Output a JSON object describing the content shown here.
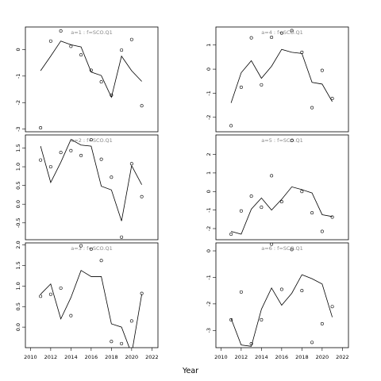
{
  "chart_data": {
    "type": "line",
    "xlabel": "Year",
    "x_axis_ticks": [
      "2010",
      "2012",
      "2014",
      "2016",
      "2018",
      "2020",
      "2022"
    ],
    "panels": [
      {
        "title": "a=1 : f=SCO.Q1",
        "ylim": [
          -3.1,
          0.85
        ],
        "yticks": [
          "0",
          "-1",
          "-2",
          "-3"
        ],
        "show_xticks": false,
        "x": [
          2011,
          2012,
          2013,
          2014,
          2015,
          2016,
          2017,
          2018,
          2019,
          2020,
          2021
        ],
        "fitted": [
          -0.8,
          -0.25,
          0.32,
          0.18,
          0.1,
          -0.85,
          -0.98,
          -1.8,
          -0.25,
          -0.8,
          -1.2
        ],
        "observed": [
          -2.95,
          0.32,
          0.7,
          0.12,
          -0.2,
          -0.78,
          -1.22,
          -1.72,
          -0.02,
          0.38,
          -2.12
        ]
      },
      {
        "title": "a=4 : f=SCO.Q1",
        "ylim": [
          -2.6,
          1.75
        ],
        "yticks": [
          "1",
          "0",
          "-1",
          "-2"
        ],
        "show_xticks": false,
        "x": [
          2011,
          2012,
          2013,
          2014,
          2015,
          2016,
          2017,
          2018,
          2019,
          2020,
          2021
        ],
        "fitted": [
          -1.4,
          -0.15,
          0.35,
          -0.38,
          0.12,
          0.82,
          0.7,
          0.65,
          -0.55,
          -0.62,
          -1.35
        ],
        "observed": [
          -2.35,
          -0.75,
          1.3,
          -0.65,
          1.32,
          1.5,
          1.6,
          0.7,
          -1.6,
          -0.05,
          -1.22
        ]
      },
      {
        "title": "a=2 : f=SCO.Q1",
        "ylim": [
          -0.95,
          1.85
        ],
        "yticks": [
          "1.5",
          "1.0",
          "0.5",
          "0.0",
          "-0.5"
        ],
        "show_xticks": false,
        "x": [
          2011,
          2012,
          2013,
          2014,
          2015,
          2016,
          2017,
          2018,
          2019,
          2020,
          2021
        ],
        "fitted": [
          1.55,
          0.58,
          1.12,
          1.73,
          1.58,
          1.55,
          0.48,
          0.38,
          -0.45,
          1.03,
          0.52
        ],
        "observed": [
          1.18,
          1.0,
          1.38,
          1.43,
          1.3,
          1.72,
          1.2,
          0.72,
          -0.88,
          1.08,
          0.2
        ]
      },
      {
        "title": "a=5 : f=SCO.Q1",
        "ylim": [
          -2.6,
          3.05
        ],
        "yticks": [
          "2",
          "1",
          "0",
          "-1",
          "-2"
        ],
        "show_xticks": false,
        "x": [
          2011,
          2012,
          2013,
          2014,
          2015,
          2016,
          2017,
          2018,
          2019,
          2020,
          2021
        ],
        "fitted": [
          -2.15,
          -2.3,
          -0.95,
          -0.35,
          -1.0,
          -0.42,
          0.25,
          0.1,
          -0.08,
          -1.25,
          -1.35
        ],
        "observed": [
          -2.3,
          -1.05,
          -0.25,
          -0.85,
          0.85,
          -0.55,
          2.75,
          0.0,
          -1.15,
          -2.15,
          -1.38
        ]
      },
      {
        "title": "a=3 : f=SCO.Q1",
        "ylim": [
          -0.5,
          2.05
        ],
        "yticks": [
          "2.0",
          "1.5",
          "1.0",
          "0.5",
          "0.0"
        ],
        "show_xticks": true,
        "x": [
          2011,
          2012,
          2013,
          2014,
          2015,
          2016,
          2017,
          2018,
          2019,
          2020,
          2021
        ],
        "fitted": [
          0.8,
          1.05,
          0.2,
          0.72,
          1.38,
          1.23,
          1.23,
          0.08,
          0.0,
          -0.65,
          0.8
        ],
        "observed": [
          0.75,
          0.8,
          0.95,
          0.28,
          1.98,
          1.9,
          1.62,
          -0.35,
          -0.4,
          0.15,
          0.82
        ]
      },
      {
        "title": "a=6 : f=SCO.Q1",
        "ylim": [
          -3.65,
          0.3
        ],
        "yticks": [
          "0",
          "-1",
          "-2",
          "-3"
        ],
        "show_xticks": true,
        "x": [
          2011,
          2012,
          2013,
          2014,
          2015,
          2016,
          2017,
          2018,
          2019,
          2020,
          2021
        ],
        "fitted": [
          -2.55,
          -3.55,
          -3.6,
          -2.2,
          -1.4,
          -2.05,
          -1.6,
          -0.9,
          -1.05,
          -1.25,
          -2.5
        ],
        "observed": [
          -2.6,
          -1.55,
          -3.5,
          -2.6,
          0.25,
          -1.45,
          0.05,
          -1.5,
          -3.45,
          -2.75,
          -2.1
        ]
      }
    ]
  }
}
